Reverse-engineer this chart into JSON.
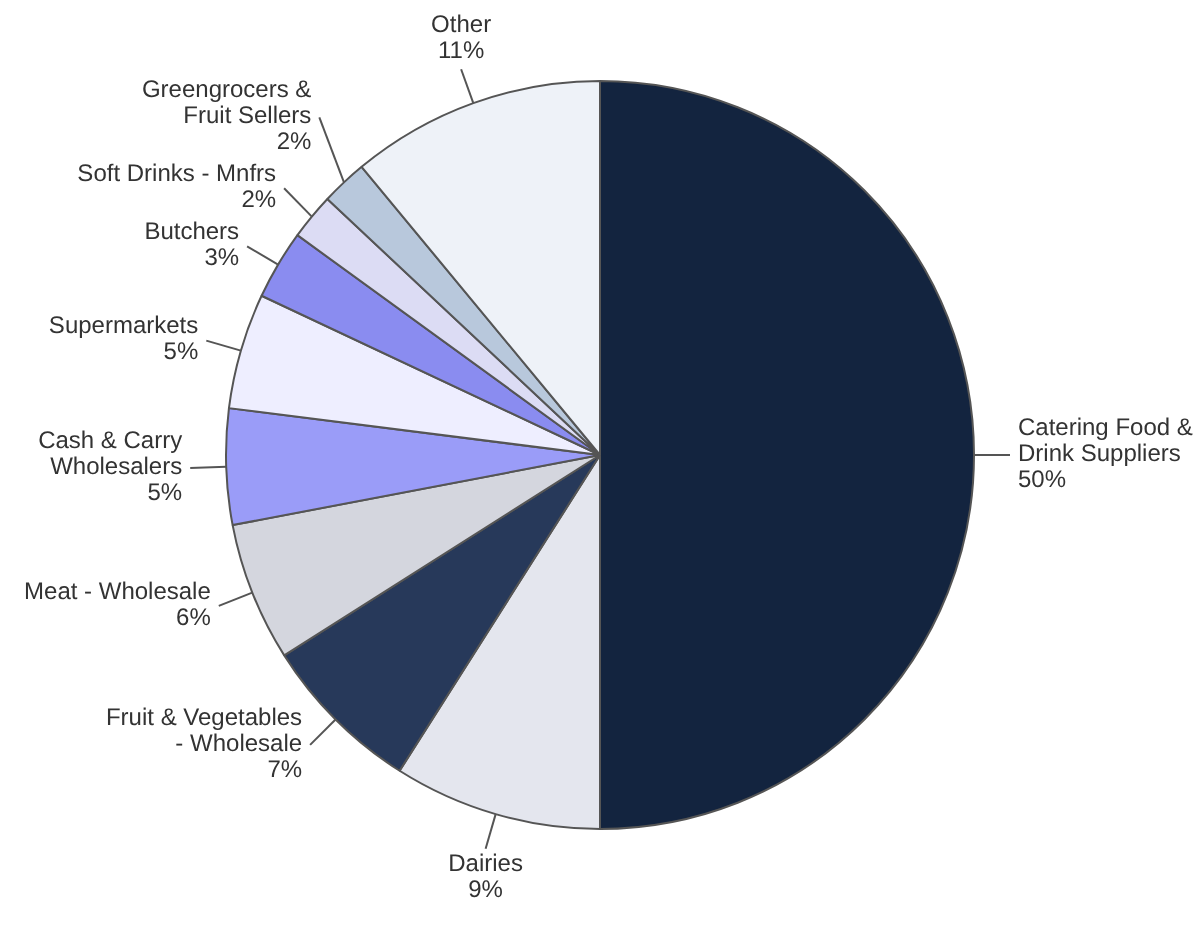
{
  "chart_data": {
    "type": "pie",
    "categories": [
      "Catering Food & Drink Suppliers",
      "Dairies",
      "Fruit & Vegetables - Wholesale",
      "Meat - Wholesale",
      "Cash & Carry Wholesalers",
      "Supermarkets",
      "Butchers",
      "Soft Drinks - Mnfrs",
      "Greengrocers & Fruit Sellers",
      "Other"
    ],
    "values": [
      50,
      9,
      7,
      6,
      5,
      5,
      3,
      2,
      2,
      11
    ],
    "value_labels": [
      "50%",
      "9%",
      "7%",
      "6%",
      "5%",
      "5%",
      "3%",
      "2%",
      "2%",
      "11%"
    ],
    "colors": [
      "#13243f",
      "#e4e6ee",
      "#27395a",
      "#d4d6de",
      "#9a9cf8",
      "#eeeeff",
      "#8a8cf0",
      "#dcdcf4",
      "#b8c8dc",
      "#eef2f8"
    ]
  }
}
